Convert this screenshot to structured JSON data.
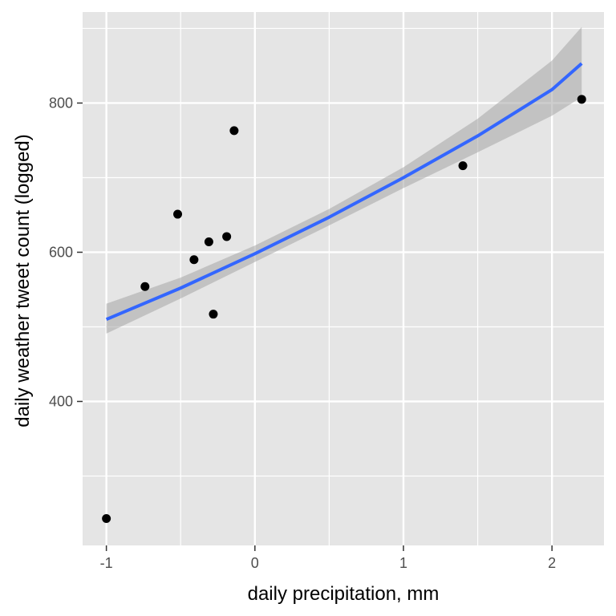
{
  "chart_data": {
    "type": "scatter",
    "xlabel": "daily precipitation, mm",
    "ylabel": "daily weather tweet count (logged)",
    "xlim": [
      -1.16,
      2.35
    ],
    "ylim": [
      207,
      922
    ],
    "x_ticks": [
      -1,
      0,
      1,
      2
    ],
    "x_tick_labels": [
      "-1",
      "0",
      "1",
      "2"
    ],
    "x_minor_ticks": [
      -0.5,
      0.5,
      1.5
    ],
    "y_ticks": [
      400,
      600,
      800
    ],
    "y_tick_labels": [
      "400",
      "600",
      "800"
    ],
    "y_minor_ticks": [
      300,
      500,
      700,
      900
    ],
    "grid": true,
    "points": {
      "x": [
        -1.0,
        -0.74,
        -0.52,
        -0.41,
        -0.31,
        -0.28,
        -0.19,
        -0.14,
        1.4,
        2.2
      ],
      "y": [
        243,
        554,
        651,
        590,
        614,
        517,
        621,
        763,
        716,
        805
      ]
    },
    "fit_line": {
      "x": [
        -1.0,
        -0.5,
        0.0,
        0.5,
        1.0,
        1.5,
        2.0,
        2.2
      ],
      "y": [
        510,
        552,
        598,
        647,
        700,
        756,
        818,
        853
      ]
    },
    "fit_band": {
      "x": [
        -1.0,
        -0.5,
        0.0,
        0.5,
        1.0,
        1.5,
        2.0,
        2.2
      ],
      "lower": [
        491,
        538,
        587,
        636,
        686,
        734,
        783,
        808
      ],
      "upper": [
        531,
        566,
        609,
        658,
        714,
        779,
        857,
        902
      ]
    },
    "colors": {
      "panel": "#e5e5e5",
      "grid": "#ffffff",
      "points": "#000000",
      "fit_line": "#3366ff",
      "band": "#a6a6a6"
    }
  }
}
